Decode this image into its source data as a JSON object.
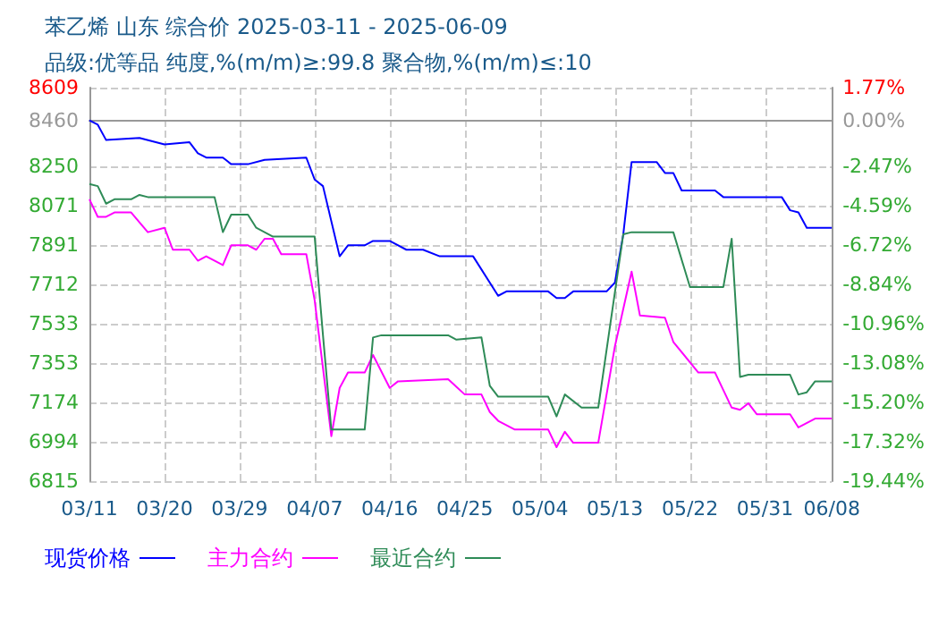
{
  "chart_data": {
    "type": "line",
    "title": "苯乙烯 山东 综合价 2025-03-11 - 2025-06-09",
    "subtitle": "品级:优等品 纯度,%(m/m)≥:99.8 聚合物,%(m/m)≤:10",
    "xlim": [
      "2025-03-11",
      "2025-06-08"
    ],
    "xticks": [
      {
        "value": "2025-03-11",
        "label": "03/11"
      },
      {
        "value": "2025-03-20",
        "label": "03/20"
      },
      {
        "value": "2025-03-29",
        "label": "03/29"
      },
      {
        "value": "2025-04-07",
        "label": "04/07"
      },
      {
        "value": "2025-04-16",
        "label": "04/16"
      },
      {
        "value": "2025-04-25",
        "label": "04/25"
      },
      {
        "value": "2025-05-04",
        "label": "05/04"
      },
      {
        "value": "2025-05-13",
        "label": "05/13"
      },
      {
        "value": "2025-05-22",
        "label": "05/22"
      },
      {
        "value": "2025-05-31",
        "label": "05/31"
      },
      {
        "value": "2025-06-08",
        "label": "06/08"
      }
    ],
    "ylim": [
      6815,
      8609
    ],
    "yticks": [
      6815,
      6994,
      7174,
      7353,
      7533,
      7712,
      7891,
      8071,
      8250,
      8460,
      8609
    ],
    "y2lim": [
      -19.44,
      1.77
    ],
    "y2ticks": [
      {
        "value": -19.44,
        "label": "-19.44%"
      },
      {
        "value": -17.32,
        "label": "-17.32%"
      },
      {
        "value": -15.2,
        "label": "-15.20%"
      },
      {
        "value": -13.08,
        "label": "-13.08%"
      },
      {
        "value": -10.96,
        "label": "-10.96%"
      },
      {
        "value": -8.84,
        "label": "-8.84%"
      },
      {
        "value": -6.72,
        "label": "-6.72%"
      },
      {
        "value": -4.59,
        "label": "-4.59%"
      },
      {
        "value": -2.47,
        "label": "-2.47%"
      },
      {
        "value": 0,
        "label": "0.00%"
      },
      {
        "value": 1.77,
        "label": "1.77%"
      }
    ],
    "grid": true,
    "legend": "bottom",
    "series": [
      {
        "name": "现货价格",
        "color": "#0000ff",
        "x": [
          "2025-03-11",
          "2025-03-12",
          "2025-03-13",
          "2025-03-17",
          "2025-03-20",
          "2025-03-23",
          "2025-03-24",
          "2025-03-25",
          "2025-03-27",
          "2025-03-28",
          "2025-03-30",
          "2025-04-01",
          "2025-04-06",
          "2025-04-07",
          "2025-04-08",
          "2025-04-10",
          "2025-04-11",
          "2025-04-13",
          "2025-04-14",
          "2025-04-16",
          "2025-04-18",
          "2025-04-20",
          "2025-04-22",
          "2025-04-26",
          "2025-04-29",
          "2025-04-30",
          "2025-05-05",
          "2025-05-06",
          "2025-05-07",
          "2025-05-08",
          "2025-05-12",
          "2025-05-13",
          "2025-05-14",
          "2025-05-15",
          "2025-05-18",
          "2025-05-19",
          "2025-05-20",
          "2025-05-21",
          "2025-05-25",
          "2025-05-26",
          "2025-06-02",
          "2025-06-03",
          "2025-06-04",
          "2025-06-05",
          "2025-06-08"
        ],
        "values": [
          8460,
          8440,
          8370,
          8380,
          8350,
          8360,
          8310,
          8290,
          8290,
          8260,
          8260,
          8280,
          8290,
          8190,
          8160,
          7840,
          7890,
          7890,
          7910,
          7910,
          7870,
          7870,
          7840,
          7840,
          7660,
          7680,
          7680,
          7650,
          7650,
          7680,
          7680,
          7720,
          7940,
          8270,
          8270,
          8220,
          8220,
          8140,
          8140,
          8110,
          8110,
          8050,
          8040,
          7970,
          7970
        ]
      },
      {
        "name": "主力合约",
        "color": "#ff00ff",
        "x": [
          "2025-03-11",
          "2025-03-12",
          "2025-03-13",
          "2025-03-14",
          "2025-03-16",
          "2025-03-18",
          "2025-03-20",
          "2025-03-21",
          "2025-03-23",
          "2025-03-24",
          "2025-03-25",
          "2025-03-27",
          "2025-03-28",
          "2025-03-30",
          "2025-03-31",
          "2025-04-01",
          "2025-04-02",
          "2025-04-03",
          "2025-04-06",
          "2025-04-07",
          "2025-04-09",
          "2025-04-10",
          "2025-04-11",
          "2025-04-13",
          "2025-04-14",
          "2025-04-16",
          "2025-04-17",
          "2025-04-23",
          "2025-04-25",
          "2025-04-27",
          "2025-04-28",
          "2025-04-29",
          "2025-05-01",
          "2025-05-05",
          "2025-05-06",
          "2025-05-07",
          "2025-05-08",
          "2025-05-11",
          "2025-05-13",
          "2025-05-15",
          "2025-05-16",
          "2025-05-19",
          "2025-05-20",
          "2025-05-23",
          "2025-05-25",
          "2025-05-27",
          "2025-05-28",
          "2025-05-29",
          "2025-05-30",
          "2025-06-03",
          "2025-06-04",
          "2025-06-06",
          "2025-06-08"
        ],
        "values": [
          8100,
          8020,
          8020,
          8040,
          8040,
          7950,
          7970,
          7870,
          7870,
          7820,
          7840,
          7800,
          7890,
          7890,
          7870,
          7920,
          7920,
          7850,
          7850,
          7640,
          7020,
          7240,
          7310,
          7310,
          7390,
          7240,
          7270,
          7280,
          7210,
          7210,
          7130,
          7090,
          7050,
          7050,
          6970,
          7040,
          6990,
          6990,
          7430,
          7770,
          7570,
          7560,
          7450,
          7310,
          7310,
          7150,
          7140,
          7170,
          7120,
          7120,
          7060,
          7100,
          7100
        ]
      },
      {
        "name": "最近合约",
        "color": "#2e8b57",
        "x": [
          "2025-03-11",
          "2025-03-12",
          "2025-03-13",
          "2025-03-14",
          "2025-03-16",
          "2025-03-17",
          "2025-03-18",
          "2025-03-26",
          "2025-03-27",
          "2025-03-28",
          "2025-03-30",
          "2025-03-31",
          "2025-04-02",
          "2025-04-07",
          "2025-04-08",
          "2025-04-09",
          "2025-04-13",
          "2025-04-14",
          "2025-04-15",
          "2025-04-23",
          "2025-04-24",
          "2025-04-27",
          "2025-04-28",
          "2025-04-29",
          "2025-05-05",
          "2025-05-06",
          "2025-05-07",
          "2025-05-09",
          "2025-05-11",
          "2025-05-14",
          "2025-05-15",
          "2025-05-20",
          "2025-05-22",
          "2025-05-26",
          "2025-05-27",
          "2025-05-28",
          "2025-05-29",
          "2025-06-03",
          "2025-06-04",
          "2025-06-05",
          "2025-06-06",
          "2025-06-08"
        ],
        "values": [
          8170,
          8160,
          8080,
          8100,
          8100,
          8120,
          8110,
          8110,
          7950,
          8030,
          8030,
          7970,
          7930,
          7930,
          7480,
          7050,
          7050,
          7470,
          7480,
          7480,
          7460,
          7470,
          7250,
          7200,
          7200,
          7110,
          7210,
          7150,
          7150,
          7940,
          7950,
          7950,
          7700,
          7700,
          7920,
          7290,
          7300,
          7300,
          7210,
          7220,
          7270,
          7270
        ]
      }
    ]
  }
}
